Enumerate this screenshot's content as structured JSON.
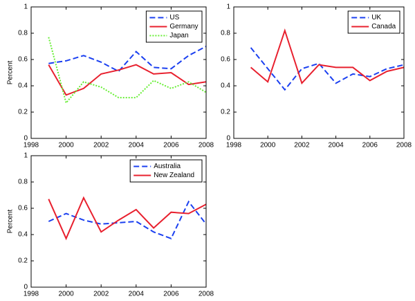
{
  "chart_data": [
    {
      "type": "line",
      "ylabel": "Percent",
      "x": [
        1999,
        2000,
        2001,
        2002,
        2003,
        2004,
        2005,
        2006,
        2007,
        2008
      ],
      "xlim": [
        1998,
        2008
      ],
      "xticks": [
        1998,
        2000,
        2002,
        2004,
        2006,
        2008
      ],
      "ylim": [
        0,
        1
      ],
      "yticks": [
        0,
        0.2,
        0.4,
        0.6,
        0.8,
        1
      ],
      "legend": "upper right",
      "series": [
        {
          "name": "US",
          "color": "#1a3ff0",
          "style": "dashed",
          "values": [
            0.57,
            0.59,
            0.63,
            0.58,
            0.51,
            0.66,
            0.54,
            0.53,
            0.63,
            0.7
          ]
        },
        {
          "name": "Germany",
          "color": "#e8202e",
          "style": "solid",
          "values": [
            0.56,
            0.33,
            0.38,
            0.49,
            0.52,
            0.56,
            0.49,
            0.5,
            0.41,
            0.43
          ]
        },
        {
          "name": "Japan",
          "color": "#66ee33",
          "style": "dotted",
          "values": [
            0.77,
            0.27,
            0.43,
            0.39,
            0.31,
            0.31,
            0.44,
            0.38,
            0.43,
            0.35
          ]
        }
      ]
    },
    {
      "type": "line",
      "x": [
        1999,
        2000,
        2001,
        2002,
        2003,
        2004,
        2005,
        2006,
        2007,
        2008
      ],
      "xlim": [
        1998,
        2008
      ],
      "xticks": [
        1998,
        2000,
        2002,
        2004,
        2006,
        2008
      ],
      "ylim": [
        0,
        1
      ],
      "yticks": [
        0,
        0.2,
        0.4,
        0.6,
        0.8,
        1
      ],
      "legend": "upper right",
      "series": [
        {
          "name": "UK",
          "color": "#1a3ff0",
          "style": "dashed",
          "values": [
            0.69,
            0.53,
            0.37,
            0.53,
            0.57,
            0.42,
            0.49,
            0.47,
            0.53,
            0.56
          ]
        },
        {
          "name": "Canada",
          "color": "#e8202e",
          "style": "solid",
          "values": [
            0.54,
            0.43,
            0.82,
            0.42,
            0.56,
            0.54,
            0.54,
            0.44,
            0.51,
            0.54
          ]
        }
      ]
    },
    {
      "type": "line",
      "ylabel": "Percent",
      "x": [
        1999,
        2000,
        2001,
        2002,
        2003,
        2004,
        2005,
        2006,
        2007,
        2008
      ],
      "xlim": [
        1998,
        2008
      ],
      "xticks": [
        1998,
        2000,
        2002,
        2004,
        2006,
        2008
      ],
      "ylim": [
        0,
        1
      ],
      "yticks": [
        0,
        0.2,
        0.4,
        0.6,
        0.8,
        1
      ],
      "legend": "upper right",
      "series": [
        {
          "name": "Australia",
          "color": "#1a3ff0",
          "style": "dashed",
          "values": [
            0.5,
            0.56,
            0.51,
            0.48,
            0.49,
            0.5,
            0.42,
            0.37,
            0.65,
            0.48
          ]
        },
        {
          "name": "New Zealand",
          "color": "#e8202e",
          "style": "solid",
          "values": [
            0.67,
            0.37,
            0.68,
            0.42,
            0.51,
            0.59,
            0.45,
            0.57,
            0.56,
            0.63
          ]
        }
      ]
    }
  ]
}
